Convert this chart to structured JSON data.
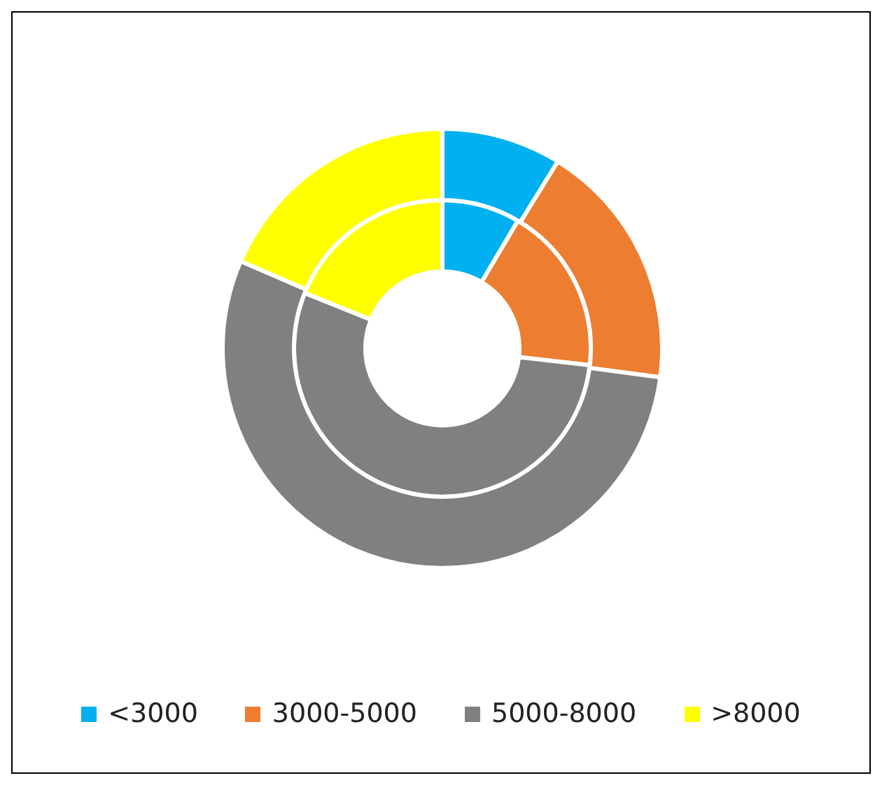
{
  "chart_data": {
    "type": "donut",
    "categories": [
      "<3000",
      "3000-5000",
      "5000-8000",
      ">8000"
    ],
    "colors": [
      "#00b0f0",
      "#ed7d31",
      "#808080",
      "#ffff00"
    ],
    "series": [
      {
        "values": [
          8.5,
          18.3,
          54.3,
          18.9
        ]
      },
      {
        "values": [
          8.8,
          18.3,
          54.4,
          18.5
        ]
      }
    ],
    "legend": "bottom"
  }
}
